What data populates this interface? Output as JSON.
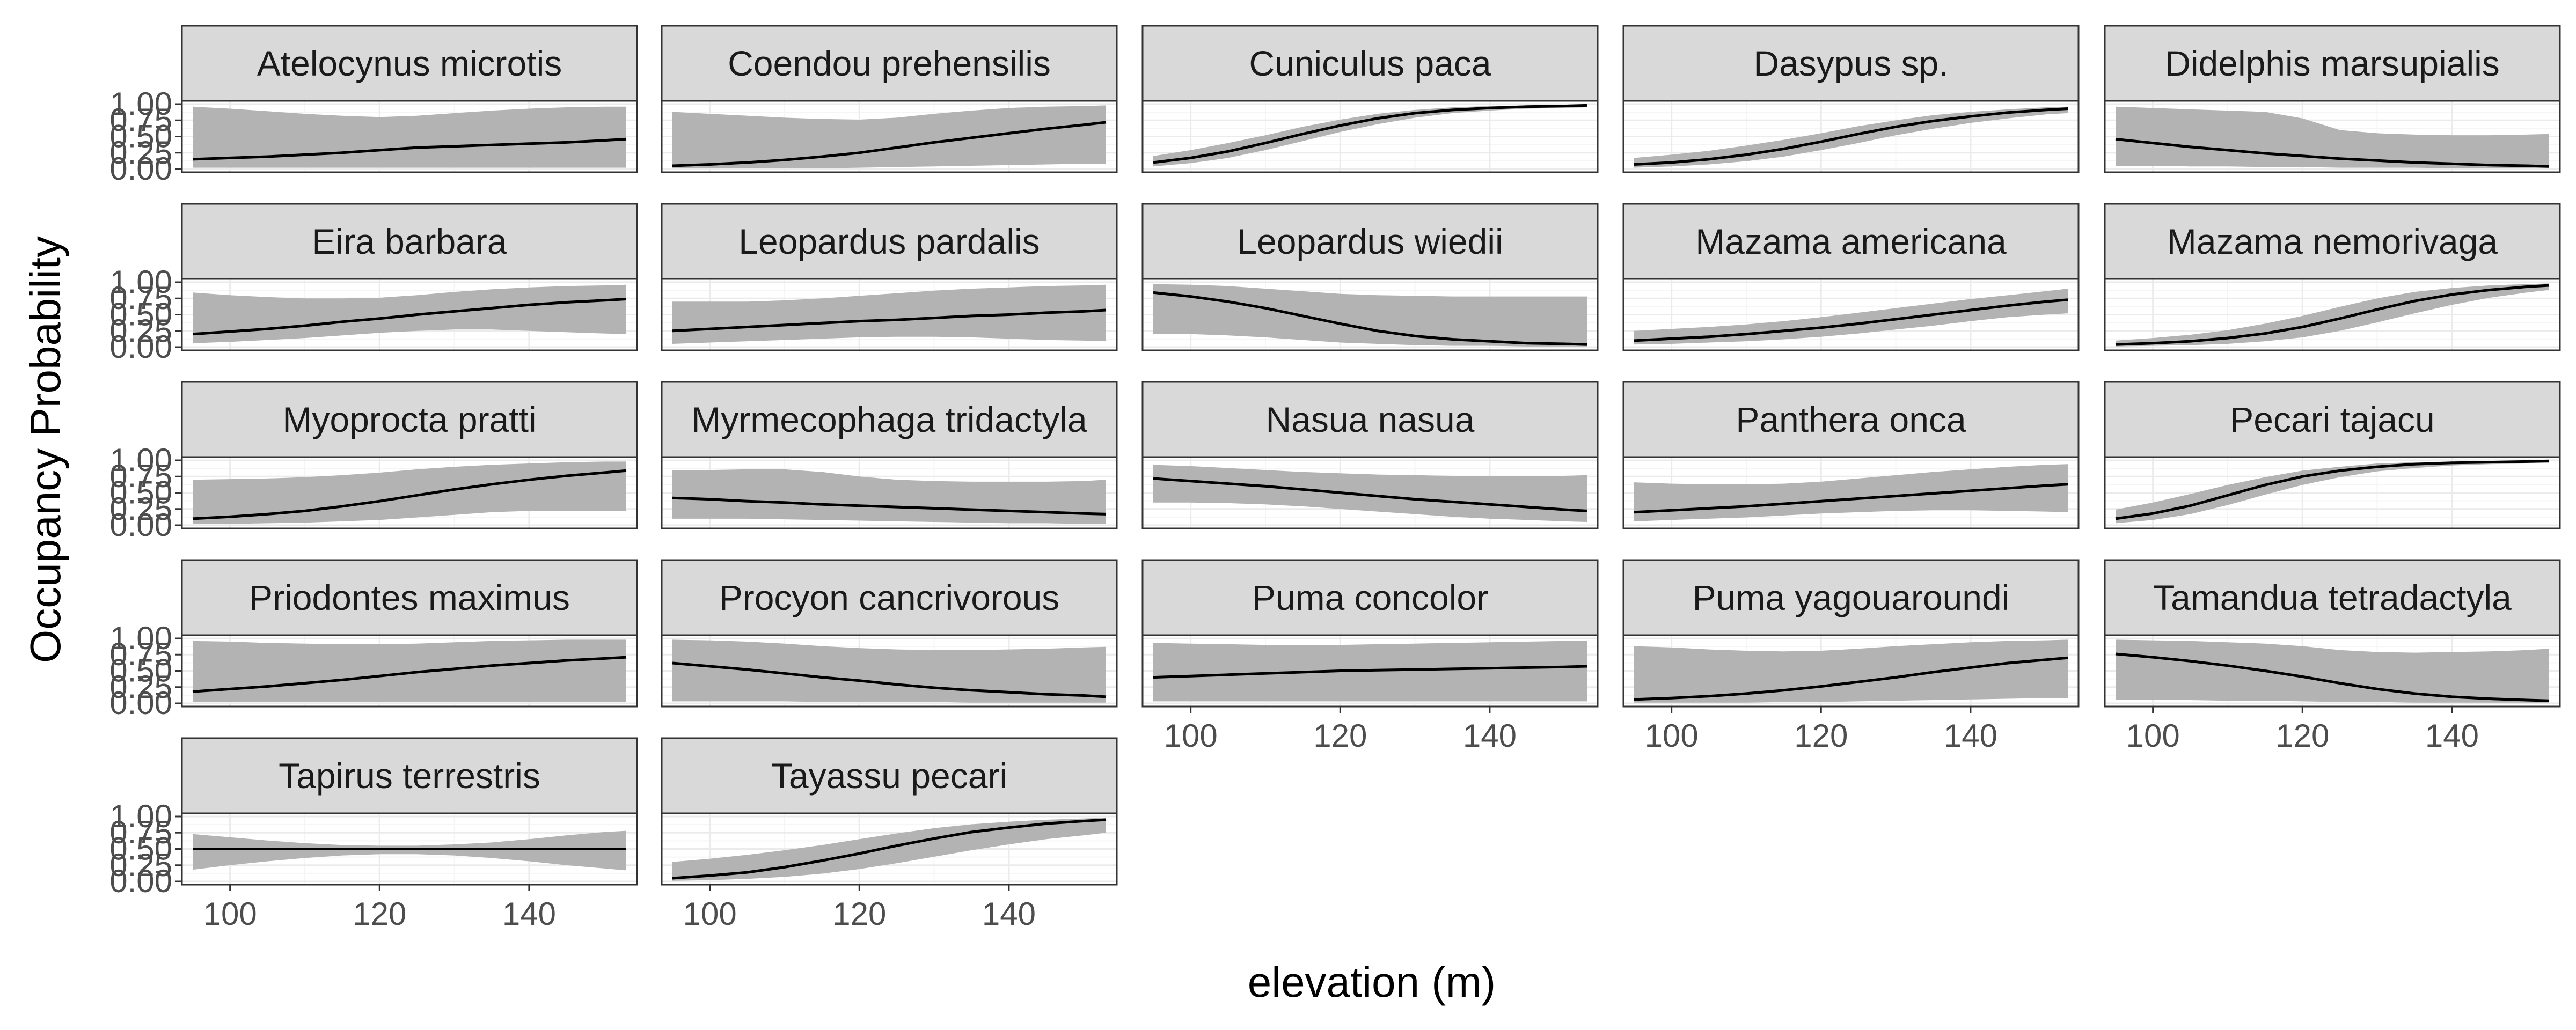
{
  "chart_data": {
    "type": "line",
    "facet_layout": "5 columns, facet_wrap, free y",
    "xlabel": "elevation (m)",
    "ylabel": "Occupancy Probability",
    "x_range": [
      95,
      153
    ],
    "x_ticks": [
      100,
      120,
      140
    ],
    "x_tick_labels": [
      "100",
      "120",
      "140"
    ],
    "y_range": [
      0,
      1
    ],
    "y_ticks": [
      0,
      0.25,
      0.5,
      0.75,
      1
    ],
    "y_tick_labels": [
      "0.00",
      "0.25",
      "0.50",
      "0.75",
      "1.00"
    ],
    "grid": true,
    "theme": "bw",
    "colors": {
      "line": "#000000",
      "band": "#b3b3b3",
      "strip": "#d9d9d9",
      "panel_border": "#333333",
      "grid_major": "#ebebeb",
      "grid_minor": "#f5f5f5"
    },
    "x": [
      95,
      100,
      105,
      110,
      115,
      120,
      125,
      130,
      135,
      140,
      145,
      150,
      153
    ],
    "panels": [
      {
        "name": "Atelocynus microtis",
        "mean": [
          0.15,
          0.17,
          0.19,
          0.22,
          0.25,
          0.29,
          0.33,
          0.35,
          0.37,
          0.39,
          0.41,
          0.44,
          0.46
        ],
        "lower": [
          0.02,
          0.02,
          0.02,
          0.02,
          0.02,
          0.02,
          0.02,
          0.02,
          0.02,
          0.02,
          0.02,
          0.02,
          0.02
        ],
        "upper": [
          0.96,
          0.93,
          0.89,
          0.85,
          0.82,
          0.8,
          0.82,
          0.86,
          0.9,
          0.93,
          0.95,
          0.96,
          0.96
        ]
      },
      {
        "name": "Coendou prehensilis",
        "mean": [
          0.05,
          0.07,
          0.1,
          0.14,
          0.19,
          0.25,
          0.33,
          0.41,
          0.48,
          0.55,
          0.62,
          0.68,
          0.72
        ],
        "lower": [
          0.01,
          0.01,
          0.01,
          0.01,
          0.01,
          0.02,
          0.03,
          0.04,
          0.05,
          0.06,
          0.07,
          0.08,
          0.08
        ],
        "upper": [
          0.88,
          0.85,
          0.82,
          0.79,
          0.77,
          0.76,
          0.79,
          0.85,
          0.9,
          0.94,
          0.96,
          0.97,
          0.98
        ]
      },
      {
        "name": "Cuniculus paca",
        "mean": [
          0.1,
          0.17,
          0.27,
          0.4,
          0.54,
          0.67,
          0.78,
          0.86,
          0.91,
          0.94,
          0.96,
          0.97,
          0.98
        ],
        "lower": [
          0.04,
          0.09,
          0.17,
          0.29,
          0.43,
          0.57,
          0.69,
          0.79,
          0.86,
          0.9,
          0.93,
          0.94,
          0.95
        ],
        "upper": [
          0.2,
          0.29,
          0.4,
          0.52,
          0.65,
          0.76,
          0.85,
          0.91,
          0.95,
          0.97,
          0.98,
          0.99,
          0.99
        ]
      },
      {
        "name": "Dasypus sp.",
        "mean": [
          0.07,
          0.1,
          0.15,
          0.22,
          0.31,
          0.42,
          0.54,
          0.65,
          0.74,
          0.81,
          0.87,
          0.91,
          0.93
        ],
        "lower": [
          0.02,
          0.04,
          0.07,
          0.12,
          0.19,
          0.29,
          0.4,
          0.52,
          0.62,
          0.71,
          0.78,
          0.84,
          0.86
        ],
        "upper": [
          0.17,
          0.22,
          0.28,
          0.36,
          0.45,
          0.55,
          0.66,
          0.75,
          0.83,
          0.88,
          0.92,
          0.95,
          0.96
        ]
      },
      {
        "name": "Didelphis marsupialis",
        "mean": [
          0.46,
          0.4,
          0.34,
          0.29,
          0.24,
          0.2,
          0.16,
          0.13,
          0.1,
          0.08,
          0.06,
          0.05,
          0.04
        ],
        "lower": [
          0.05,
          0.05,
          0.04,
          0.04,
          0.03,
          0.03,
          0.02,
          0.02,
          0.02,
          0.01,
          0.01,
          0.01,
          0.01
        ],
        "upper": [
          0.96,
          0.94,
          0.92,
          0.9,
          0.88,
          0.78,
          0.6,
          0.55,
          0.53,
          0.52,
          0.52,
          0.53,
          0.54
        ]
      },
      {
        "name": "Eira barbara",
        "mean": [
          0.2,
          0.24,
          0.28,
          0.33,
          0.39,
          0.44,
          0.5,
          0.55,
          0.6,
          0.65,
          0.69,
          0.72,
          0.74
        ],
        "lower": [
          0.06,
          0.08,
          0.11,
          0.14,
          0.18,
          0.22,
          0.25,
          0.27,
          0.27,
          0.25,
          0.23,
          0.21,
          0.2
        ],
        "upper": [
          0.84,
          0.8,
          0.77,
          0.75,
          0.75,
          0.76,
          0.8,
          0.85,
          0.89,
          0.92,
          0.94,
          0.95,
          0.96
        ]
      },
      {
        "name": "Leopardus pardalis",
        "mean": [
          0.25,
          0.28,
          0.31,
          0.34,
          0.37,
          0.4,
          0.42,
          0.45,
          0.48,
          0.5,
          0.53,
          0.55,
          0.57
        ],
        "lower": [
          0.05,
          0.07,
          0.09,
          0.11,
          0.13,
          0.15,
          0.16,
          0.16,
          0.15,
          0.13,
          0.11,
          0.1,
          0.09
        ],
        "upper": [
          0.7,
          0.7,
          0.7,
          0.72,
          0.75,
          0.79,
          0.83,
          0.87,
          0.9,
          0.92,
          0.94,
          0.95,
          0.96
        ]
      },
      {
        "name": "Leopardus wiedii",
        "mean": [
          0.84,
          0.78,
          0.7,
          0.6,
          0.48,
          0.36,
          0.25,
          0.17,
          0.12,
          0.09,
          0.06,
          0.05,
          0.04
        ],
        "lower": [
          0.2,
          0.2,
          0.18,
          0.15,
          0.11,
          0.07,
          0.05,
          0.03,
          0.02,
          0.02,
          0.01,
          0.01,
          0.01
        ],
        "upper": [
          0.97,
          0.96,
          0.94,
          0.9,
          0.86,
          0.82,
          0.8,
          0.79,
          0.78,
          0.78,
          0.78,
          0.78,
          0.78
        ]
      },
      {
        "name": "Mazama americana",
        "mean": [
          0.1,
          0.13,
          0.16,
          0.2,
          0.25,
          0.3,
          0.36,
          0.43,
          0.5,
          0.57,
          0.64,
          0.7,
          0.73
        ],
        "lower": [
          0.04,
          0.05,
          0.07,
          0.09,
          0.12,
          0.16,
          0.21,
          0.27,
          0.33,
          0.4,
          0.46,
          0.5,
          0.52
        ],
        "upper": [
          0.25,
          0.28,
          0.31,
          0.35,
          0.4,
          0.46,
          0.53,
          0.6,
          0.67,
          0.74,
          0.8,
          0.86,
          0.9
        ]
      },
      {
        "name": "Mazama nemorivaga",
        "mean": [
          0.04,
          0.06,
          0.09,
          0.14,
          0.21,
          0.31,
          0.44,
          0.58,
          0.71,
          0.81,
          0.88,
          0.93,
          0.95
        ],
        "lower": [
          0.01,
          0.02,
          0.03,
          0.05,
          0.09,
          0.15,
          0.25,
          0.38,
          0.52,
          0.65,
          0.76,
          0.84,
          0.88
        ],
        "upper": [
          0.1,
          0.14,
          0.19,
          0.26,
          0.36,
          0.48,
          0.62,
          0.75,
          0.85,
          0.91,
          0.95,
          0.97,
          0.98
        ]
      },
      {
        "name": "Myoprocta pratti",
        "mean": [
          0.1,
          0.13,
          0.17,
          0.22,
          0.29,
          0.37,
          0.46,
          0.55,
          0.63,
          0.7,
          0.76,
          0.81,
          0.84
        ],
        "lower": [
          0.02,
          0.02,
          0.03,
          0.04,
          0.06,
          0.08,
          0.12,
          0.16,
          0.2,
          0.22,
          0.22,
          0.22,
          0.22
        ],
        "upper": [
          0.7,
          0.71,
          0.72,
          0.74,
          0.77,
          0.81,
          0.86,
          0.9,
          0.93,
          0.95,
          0.97,
          0.98,
          0.98
        ]
      },
      {
        "name": "Myrmecophaga tridactyla",
        "mean": [
          0.42,
          0.4,
          0.37,
          0.35,
          0.32,
          0.3,
          0.28,
          0.26,
          0.24,
          0.22,
          0.2,
          0.18,
          0.17
        ],
        "lower": [
          0.1,
          0.1,
          0.1,
          0.09,
          0.08,
          0.07,
          0.06,
          0.05,
          0.04,
          0.03,
          0.03,
          0.02,
          0.02
        ],
        "upper": [
          0.85,
          0.85,
          0.86,
          0.86,
          0.82,
          0.75,
          0.7,
          0.68,
          0.67,
          0.67,
          0.67,
          0.68,
          0.7
        ]
      },
      {
        "name": "Nasua nasua",
        "mean": [
          0.72,
          0.68,
          0.64,
          0.6,
          0.55,
          0.5,
          0.45,
          0.4,
          0.36,
          0.32,
          0.28,
          0.24,
          0.22
        ],
        "lower": [
          0.35,
          0.35,
          0.34,
          0.32,
          0.29,
          0.25,
          0.21,
          0.17,
          0.13,
          0.1,
          0.08,
          0.06,
          0.05
        ],
        "upper": [
          0.93,
          0.91,
          0.88,
          0.85,
          0.82,
          0.8,
          0.78,
          0.77,
          0.76,
          0.76,
          0.76,
          0.76,
          0.77
        ]
      },
      {
        "name": "Panthera onca",
        "mean": [
          0.2,
          0.23,
          0.26,
          0.29,
          0.33,
          0.37,
          0.41,
          0.45,
          0.49,
          0.53,
          0.57,
          0.61,
          0.63
        ],
        "lower": [
          0.06,
          0.08,
          0.1,
          0.12,
          0.15,
          0.18,
          0.2,
          0.22,
          0.23,
          0.23,
          0.22,
          0.21,
          0.2
        ],
        "upper": [
          0.66,
          0.64,
          0.63,
          0.63,
          0.64,
          0.67,
          0.72,
          0.77,
          0.82,
          0.86,
          0.9,
          0.93,
          0.94
        ]
      },
      {
        "name": "Pecari tajacu",
        "mean": [
          0.1,
          0.18,
          0.3,
          0.46,
          0.62,
          0.75,
          0.84,
          0.9,
          0.94,
          0.96,
          0.97,
          0.98,
          0.99
        ],
        "lower": [
          0.03,
          0.08,
          0.17,
          0.31,
          0.47,
          0.62,
          0.74,
          0.83,
          0.88,
          0.92,
          0.94,
          0.95,
          0.96
        ],
        "upper": [
          0.24,
          0.35,
          0.48,
          0.62,
          0.74,
          0.84,
          0.9,
          0.95,
          0.97,
          0.98,
          0.99,
          0.99,
          0.99
        ]
      },
      {
        "name": "Priodontes maximus",
        "mean": [
          0.18,
          0.22,
          0.26,
          0.31,
          0.36,
          0.42,
          0.48,
          0.53,
          0.58,
          0.62,
          0.66,
          0.69,
          0.71
        ],
        "lower": [
          0.02,
          0.02,
          0.02,
          0.02,
          0.02,
          0.02,
          0.02,
          0.02,
          0.02,
          0.02,
          0.02,
          0.02,
          0.02
        ],
        "upper": [
          0.96,
          0.95,
          0.93,
          0.92,
          0.91,
          0.91,
          0.92,
          0.94,
          0.96,
          0.97,
          0.98,
          0.98,
          0.98
        ]
      },
      {
        "name": "Procyon cancrivorous",
        "mean": [
          0.62,
          0.57,
          0.52,
          0.46,
          0.4,
          0.35,
          0.29,
          0.24,
          0.2,
          0.17,
          0.14,
          0.12,
          0.1
        ],
        "lower": [
          0.03,
          0.03,
          0.03,
          0.03,
          0.02,
          0.02,
          0.02,
          0.02,
          0.01,
          0.01,
          0.01,
          0.01,
          0.01
        ],
        "upper": [
          0.98,
          0.97,
          0.95,
          0.92,
          0.88,
          0.85,
          0.83,
          0.82,
          0.82,
          0.83,
          0.84,
          0.86,
          0.87
        ]
      },
      {
        "name": "Puma concolor",
        "mean": [
          0.4,
          0.42,
          0.44,
          0.46,
          0.48,
          0.5,
          0.51,
          0.52,
          0.53,
          0.54,
          0.55,
          0.56,
          0.57
        ],
        "lower": [
          0.03,
          0.03,
          0.03,
          0.03,
          0.03,
          0.03,
          0.03,
          0.03,
          0.03,
          0.03,
          0.03,
          0.03,
          0.03
        ],
        "upper": [
          0.93,
          0.92,
          0.91,
          0.9,
          0.9,
          0.9,
          0.91,
          0.92,
          0.93,
          0.94,
          0.95,
          0.96,
          0.96
        ]
      },
      {
        "name": "Puma yagouaroundi",
        "mean": [
          0.06,
          0.08,
          0.11,
          0.15,
          0.2,
          0.26,
          0.33,
          0.4,
          0.48,
          0.55,
          0.62,
          0.67,
          0.7
        ],
        "lower": [
          0.01,
          0.01,
          0.01,
          0.01,
          0.02,
          0.02,
          0.03,
          0.04,
          0.05,
          0.06,
          0.07,
          0.08,
          0.08
        ],
        "upper": [
          0.88,
          0.86,
          0.83,
          0.81,
          0.8,
          0.81,
          0.84,
          0.88,
          0.91,
          0.94,
          0.96,
          0.97,
          0.98
        ]
      },
      {
        "name": "Tamandua tetradactyla",
        "mean": [
          0.76,
          0.71,
          0.65,
          0.58,
          0.5,
          0.41,
          0.31,
          0.22,
          0.15,
          0.1,
          0.07,
          0.05,
          0.04
        ],
        "lower": [
          0.05,
          0.05,
          0.05,
          0.04,
          0.04,
          0.03,
          0.02,
          0.02,
          0.01,
          0.01,
          0.01,
          0.01,
          0.01
        ],
        "upper": [
          0.98,
          0.97,
          0.96,
          0.94,
          0.92,
          0.88,
          0.82,
          0.79,
          0.78,
          0.79,
          0.8,
          0.82,
          0.84
        ]
      },
      {
        "name": "Tapirus terrestris",
        "mean": [
          0.5,
          0.5,
          0.5,
          0.5,
          0.5,
          0.5,
          0.5,
          0.5,
          0.5,
          0.5,
          0.5,
          0.5,
          0.5
        ],
        "lower": [
          0.18,
          0.25,
          0.31,
          0.36,
          0.4,
          0.42,
          0.42,
          0.4,
          0.36,
          0.31,
          0.25,
          0.2,
          0.17
        ],
        "upper": [
          0.73,
          0.68,
          0.63,
          0.59,
          0.56,
          0.55,
          0.55,
          0.57,
          0.6,
          0.65,
          0.71,
          0.76,
          0.78
        ]
      },
      {
        "name": "Tayassu pecari",
        "mean": [
          0.05,
          0.09,
          0.14,
          0.22,
          0.32,
          0.43,
          0.55,
          0.66,
          0.76,
          0.83,
          0.89,
          0.93,
          0.95
        ],
        "lower": [
          0.01,
          0.02,
          0.04,
          0.07,
          0.12,
          0.19,
          0.28,
          0.38,
          0.48,
          0.57,
          0.65,
          0.71,
          0.75
        ],
        "upper": [
          0.3,
          0.35,
          0.41,
          0.48,
          0.56,
          0.65,
          0.74,
          0.82,
          0.88,
          0.92,
          0.95,
          0.97,
          0.98
        ]
      }
    ]
  }
}
